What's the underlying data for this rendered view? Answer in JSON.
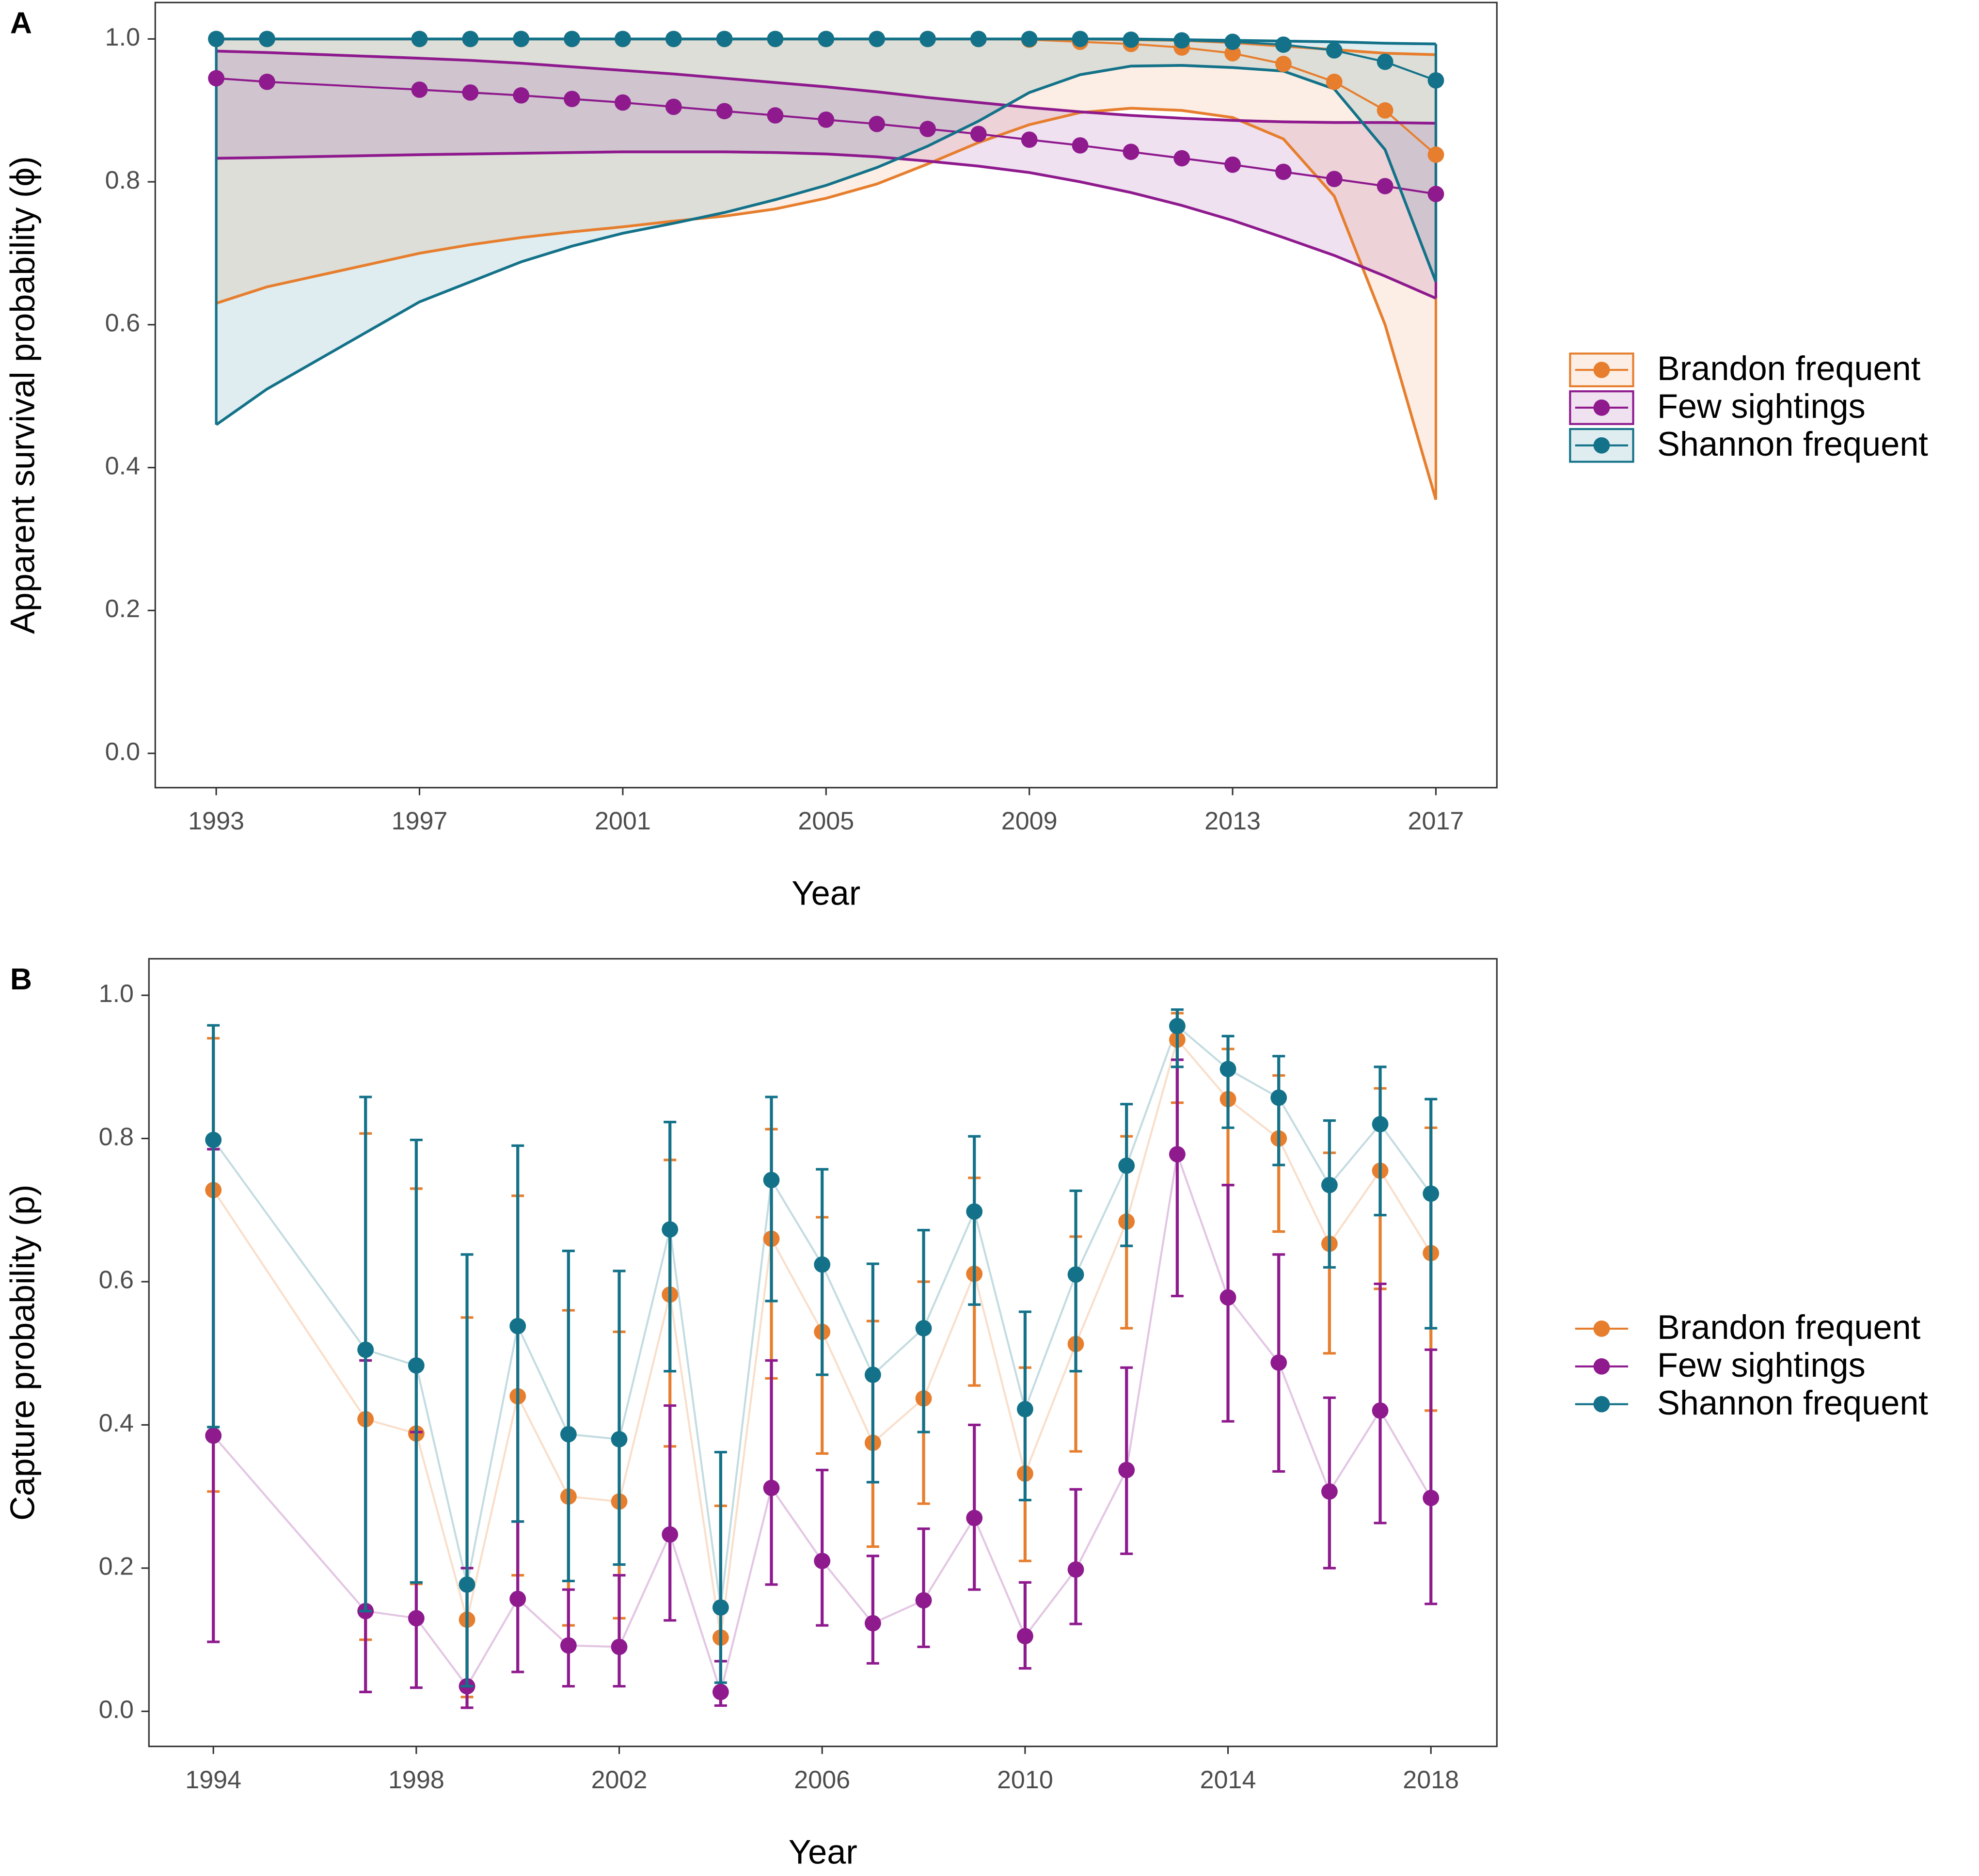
{
  "chart_data": [
    {
      "type": "line",
      "panel": "A",
      "interval": "ribbon",
      "legend": "right",
      "xlabel": "Year",
      "ylabel": "Apparent survival probability (ϕ)",
      "x": [
        1993,
        1994,
        1997,
        1998,
        1999,
        2000,
        2001,
        2002,
        2003,
        2004,
        2005,
        2006,
        2007,
        2008,
        2009,
        2010,
        2011,
        2012,
        2013,
        2014,
        2015,
        2016,
        2017
      ],
      "xlim": [
        1991.8,
        2018.2
      ],
      "xticks": [
        1993,
        1997,
        2001,
        2005,
        2009,
        2013,
        2017
      ],
      "ylim": [
        -0.048,
        1.051
      ],
      "yticks": [
        {
          "value": 0,
          "label": "0.0"
        },
        0.2,
        0.4,
        0.6,
        0.8,
        {
          "value": 1,
          "label": "1.0"
        }
      ],
      "series": [
        {
          "name": "Brandon frequent",
          "color": "#e67e2e",
          "values": [
            1.0,
            1.0,
            1.0,
            1.0,
            1.0,
            1.0,
            1.0,
            1.0,
            1.0,
            1.0,
            1.0,
            1.0,
            1.0,
            1.0,
            0.999,
            0.996,
            0.993,
            0.988,
            0.98,
            0.965,
            0.94,
            0.9,
            0.838
          ],
          "lower": [
            0.63,
            0.653,
            0.7,
            0.712,
            0.722,
            0.73,
            0.737,
            0.745,
            0.752,
            0.762,
            0.777,
            0.797,
            0.825,
            0.855,
            0.88,
            0.897,
            0.903,
            0.9,
            0.89,
            0.86,
            0.78,
            0.6,
            0.355
          ],
          "upper": [
            1.0,
            1.0,
            1.0,
            1.0,
            1.0,
            1.0,
            1.0,
            1.0,
            1.0,
            1.0,
            1.0,
            1.0,
            1.0,
            1.0,
            1.0,
            1.0,
            0.999,
            0.998,
            0.995,
            0.99,
            0.985,
            0.98,
            0.978
          ]
        },
        {
          "name": "Few sightings",
          "color": "#8e1a8e",
          "values": [
            0.945,
            0.94,
            0.929,
            0.925,
            0.921,
            0.916,
            0.911,
            0.905,
            0.899,
            0.893,
            0.887,
            0.881,
            0.874,
            0.867,
            0.859,
            0.851,
            0.842,
            0.833,
            0.824,
            0.814,
            0.804,
            0.794,
            0.783
          ],
          "lower": [
            0.833,
            0.834,
            0.838,
            0.839,
            0.84,
            0.841,
            0.842,
            0.842,
            0.842,
            0.841,
            0.839,
            0.835,
            0.829,
            0.822,
            0.813,
            0.8,
            0.785,
            0.767,
            0.746,
            0.722,
            0.697,
            0.668,
            0.637
          ],
          "upper": [
            0.983,
            0.981,
            0.973,
            0.97,
            0.966,
            0.961,
            0.956,
            0.951,
            0.945,
            0.939,
            0.933,
            0.926,
            0.918,
            0.911,
            0.904,
            0.898,
            0.893,
            0.889,
            0.886,
            0.884,
            0.883,
            0.883,
            0.882
          ]
        },
        {
          "name": "Shannon frequent",
          "color": "#137289",
          "values": [
            1.0,
            1.0,
            1.0,
            1.0,
            1.0,
            1.0,
            1.0,
            1.0,
            1.0,
            1.0,
            1.0,
            1.0,
            1.0,
            1.0,
            1.0,
            1.0,
            0.999,
            0.998,
            0.996,
            0.992,
            0.984,
            0.968,
            0.942
          ],
          "lower": [
            0.46,
            0.51,
            0.632,
            0.66,
            0.688,
            0.71,
            0.728,
            0.742,
            0.757,
            0.775,
            0.795,
            0.82,
            0.85,
            0.885,
            0.925,
            0.95,
            0.962,
            0.963,
            0.96,
            0.955,
            0.93,
            0.845,
            0.66
          ],
          "upper": [
            1.0,
            1.0,
            1.0,
            1.0,
            1.0,
            1.0,
            1.0,
            1.0,
            1.0,
            1.0,
            1.0,
            1.0,
            1.0,
            1.0,
            1.0,
            1.0,
            1.0,
            0.999,
            0.998,
            0.997,
            0.996,
            0.994,
            0.993
          ]
        }
      ]
    },
    {
      "type": "line",
      "panel": "B",
      "interval": "errorbar",
      "legend": "right",
      "xlabel": "Year",
      "ylabel": "Capture probability (p)",
      "x": [
        1994,
        1997,
        1998,
        1999,
        2000,
        2001,
        2002,
        2003,
        2004,
        2005,
        2006,
        2007,
        2008,
        2009,
        2010,
        2011,
        2012,
        2013,
        2014,
        2015,
        2016,
        2017,
        2018
      ],
      "xlim": [
        1992.73,
        2019.3
      ],
      "xticks": [
        1994,
        1998,
        2002,
        2006,
        2010,
        2014,
        2018
      ],
      "ylim": [
        -0.049,
        1.051
      ],
      "yticks": [
        {
          "value": 0,
          "label": "0.0"
        },
        0.2,
        0.4,
        0.6,
        0.8,
        {
          "value": 1,
          "label": "1.0"
        }
      ],
      "series": [
        {
          "name": "Brandon frequent",
          "color": "#e67e2e",
          "values": [
            0.728,
            0.408,
            0.388,
            0.128,
            0.44,
            0.3,
            0.293,
            0.582,
            0.103,
            0.66,
            0.53,
            0.375,
            0.437,
            0.611,
            0.332,
            0.513,
            0.684,
            0.938,
            0.855,
            0.8,
            0.653,
            0.755,
            0.64
          ],
          "lower": [
            0.307,
            0.1,
            0.178,
            0.02,
            0.19,
            0.12,
            0.13,
            0.37,
            0.03,
            0.465,
            0.36,
            0.23,
            0.29,
            0.455,
            0.21,
            0.363,
            0.535,
            0.85,
            0.735,
            0.67,
            0.5,
            0.59,
            0.42
          ],
          "upper": [
            0.94,
            0.807,
            0.73,
            0.55,
            0.72,
            0.56,
            0.53,
            0.77,
            0.287,
            0.813,
            0.69,
            0.545,
            0.6,
            0.745,
            0.48,
            0.663,
            0.803,
            0.975,
            0.925,
            0.888,
            0.78,
            0.87,
            0.815
          ]
        },
        {
          "name": "Few sightings",
          "color": "#8e1a8e",
          "values": [
            0.385,
            0.14,
            0.13,
            0.035,
            0.157,
            0.092,
            0.09,
            0.247,
            0.027,
            0.312,
            0.21,
            0.123,
            0.155,
            0.27,
            0.105,
            0.198,
            0.337,
            0.778,
            0.578,
            0.487,
            0.307,
            0.42,
            0.298
          ],
          "lower": [
            0.097,
            0.027,
            0.033,
            0.005,
            0.055,
            0.035,
            0.035,
            0.127,
            0.008,
            0.177,
            0.12,
            0.067,
            0.09,
            0.17,
            0.06,
            0.122,
            0.22,
            0.58,
            0.405,
            0.335,
            0.2,
            0.263,
            0.15
          ],
          "upper": [
            0.785,
            0.49,
            0.39,
            0.2,
            0.265,
            0.17,
            0.19,
            0.427,
            0.07,
            0.49,
            0.337,
            0.217,
            0.255,
            0.4,
            0.18,
            0.31,
            0.48,
            0.91,
            0.735,
            0.638,
            0.438,
            0.597,
            0.505
          ]
        },
        {
          "name": "Shannon frequent",
          "color": "#137289",
          "values": [
            0.798,
            0.505,
            0.483,
            0.177,
            0.538,
            0.387,
            0.38,
            0.673,
            0.145,
            0.742,
            0.624,
            0.47,
            0.535,
            0.698,
            0.422,
            0.61,
            0.762,
            0.957,
            0.897,
            0.857,
            0.735,
            0.82,
            0.723
          ],
          "lower": [
            0.397,
            0.14,
            0.18,
            0.035,
            0.265,
            0.182,
            0.205,
            0.475,
            0.04,
            0.573,
            0.47,
            0.32,
            0.39,
            0.568,
            0.295,
            0.475,
            0.65,
            0.9,
            0.815,
            0.763,
            0.62,
            0.693,
            0.535
          ],
          "upper": [
            0.958,
            0.858,
            0.798,
            0.638,
            0.79,
            0.643,
            0.615,
            0.823,
            0.362,
            0.858,
            0.757,
            0.625,
            0.672,
            0.803,
            0.558,
            0.727,
            0.848,
            0.98,
            0.943,
            0.915,
            0.825,
            0.9,
            0.855
          ]
        }
      ]
    }
  ]
}
